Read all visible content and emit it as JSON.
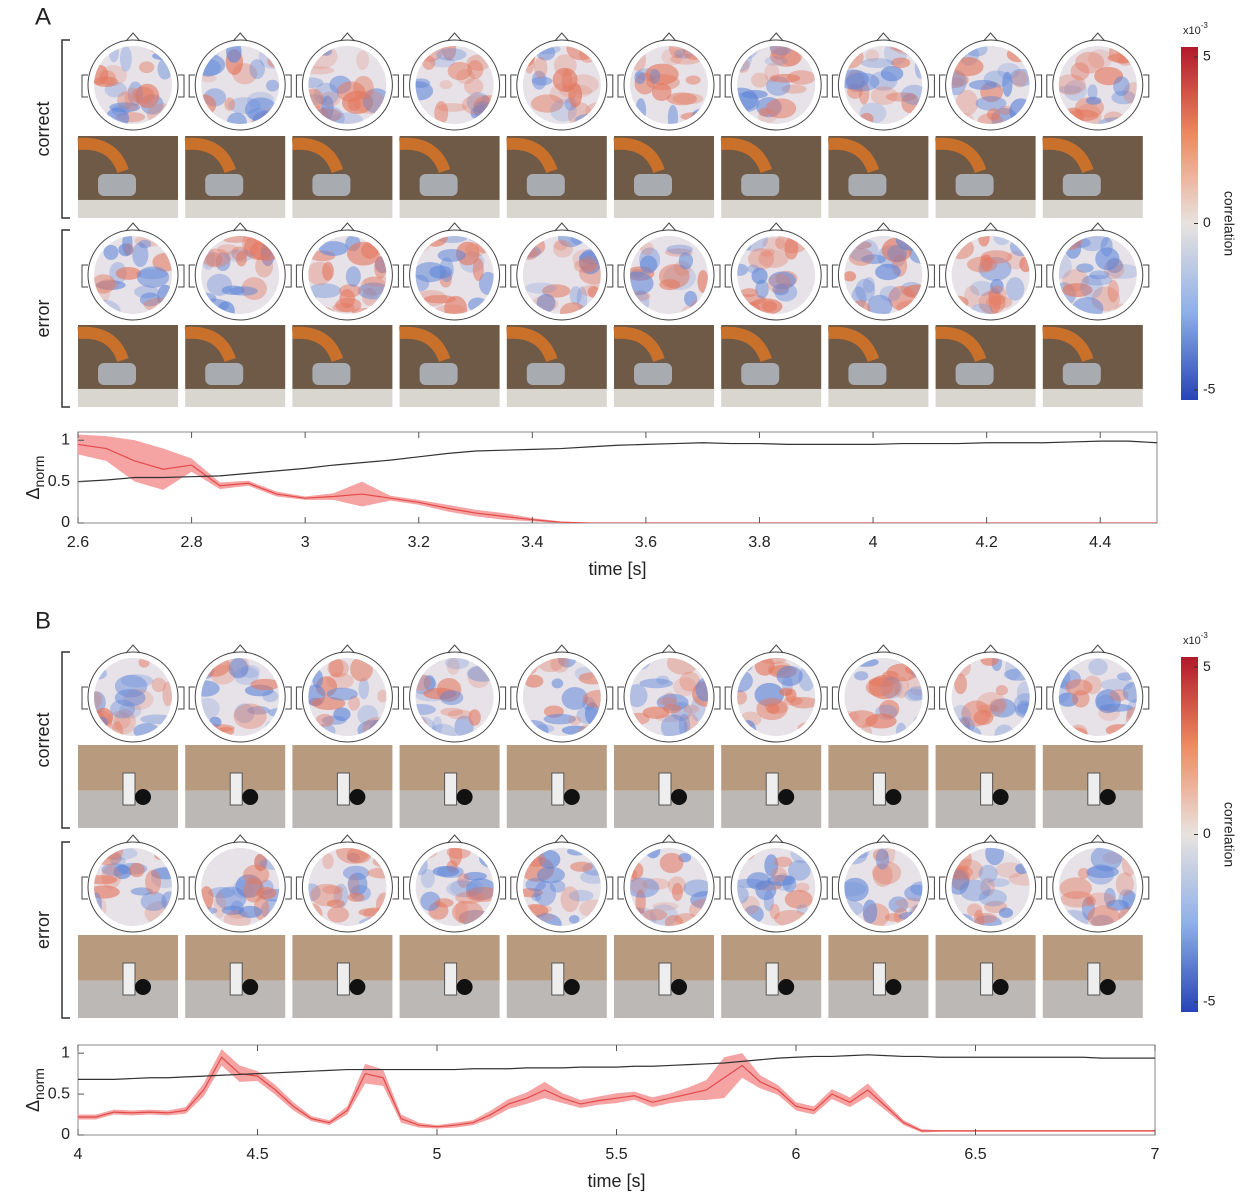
{
  "chart_data": [
    {
      "type": "line",
      "panel_label": "A",
      "row_labels": [
        "correct",
        "error"
      ],
      "colorbar": {
        "label": "correlation",
        "multiplier": "x10",
        "exponent": "-3",
        "lim": [
          -5.3,
          5.3
        ],
        "ticks": [
          5,
          0,
          -5
        ]
      },
      "ylabel": {
        "main": "Δ",
        "sub": "norm"
      },
      "xlabel": "time [s]",
      "xlim": [
        2.6,
        4.5
      ],
      "xticks": [
        2.6,
        2.8,
        3,
        3.2,
        3.4,
        3.6,
        3.8,
        4,
        4.2,
        4.4
      ],
      "ylim": [
        0,
        1.1
      ],
      "yticks": [
        0,
        0.5,
        1
      ],
      "x": [
        2.6,
        2.65,
        2.7,
        2.75,
        2.8,
        2.85,
        2.9,
        2.95,
        3.0,
        3.05,
        3.1,
        3.15,
        3.2,
        3.25,
        3.3,
        3.35,
        3.4,
        3.45,
        3.5,
        3.55,
        3.6,
        3.65,
        3.7,
        3.75,
        3.8,
        3.85,
        3.9,
        3.95,
        4.0,
        4.05,
        4.1,
        4.15,
        4.2,
        4.25,
        4.3,
        4.35,
        4.4,
        4.45,
        4.5
      ],
      "series": [
        {
          "color": "#e34a4a",
          "band_color": "#f5a3a3",
          "values": [
            0.95,
            0.9,
            0.75,
            0.65,
            0.7,
            0.45,
            0.48,
            0.35,
            0.3,
            0.32,
            0.35,
            0.3,
            0.25,
            0.18,
            0.12,
            0.08,
            0.04,
            0.01,
            0,
            0,
            0,
            0,
            0,
            0,
            0,
            0,
            0,
            0,
            0,
            0,
            0,
            0,
            0,
            0,
            0,
            0,
            0,
            0,
            0
          ],
          "errors": [
            0.12,
            0.15,
            0.25,
            0.25,
            0.08,
            0.04,
            0.03,
            0.03,
            0.02,
            0.04,
            0.15,
            0.03,
            0.03,
            0.04,
            0.04,
            0.04,
            0.02,
            0.01,
            0,
            0,
            0,
            0,
            0,
            0,
            0,
            0,
            0,
            0,
            0,
            0,
            0,
            0,
            0,
            0,
            0,
            0,
            0,
            0,
            0
          ]
        },
        {
          "color": "#333333",
          "values": [
            0.5,
            0.52,
            0.55,
            0.55,
            0.56,
            0.57,
            0.6,
            0.63,
            0.66,
            0.7,
            0.73,
            0.76,
            0.8,
            0.84,
            0.87,
            0.88,
            0.89,
            0.9,
            0.92,
            0.94,
            0.95,
            0.96,
            0.97,
            0.96,
            0.96,
            0.95,
            0.95,
            0.95,
            0.95,
            0.96,
            0.96,
            0.96,
            0.97,
            0.97,
            0.97,
            0.98,
            0.99,
            0.99,
            0.97
          ]
        }
      ]
    },
    {
      "type": "line",
      "panel_label": "B",
      "row_labels": [
        "correct",
        "error"
      ],
      "colorbar": {
        "label": "correlation",
        "multiplier": "x10",
        "exponent": "-3",
        "lim": [
          -5.3,
          5.3
        ],
        "ticks": [
          5,
          0,
          -5
        ]
      },
      "ylabel": {
        "main": "Δ",
        "sub": "norm"
      },
      "xlabel": "time [s]",
      "xlim": [
        4,
        7
      ],
      "xticks": [
        4,
        4.5,
        5,
        5.5,
        6,
        6.5,
        7
      ],
      "ylim": [
        0,
        1.1
      ],
      "yticks": [
        0,
        0.5,
        1
      ],
      "x": [
        4.0,
        4.05,
        4.1,
        4.15,
        4.2,
        4.25,
        4.3,
        4.35,
        4.4,
        4.45,
        4.5,
        4.55,
        4.6,
        4.65,
        4.7,
        4.75,
        4.8,
        4.85,
        4.9,
        4.95,
        5.0,
        5.05,
        5.1,
        5.15,
        5.2,
        5.25,
        5.3,
        5.35,
        5.4,
        5.45,
        5.5,
        5.55,
        5.6,
        5.65,
        5.7,
        5.75,
        5.8,
        5.85,
        5.9,
        5.95,
        6.0,
        6.05,
        6.1,
        6.15,
        6.2,
        6.25,
        6.3,
        6.35,
        6.4,
        6.45,
        6.5,
        6.55,
        6.6,
        6.65,
        6.7,
        6.75,
        6.8,
        6.85,
        6.9,
        6.95,
        7.0
      ],
      "series": [
        {
          "color": "#e34a4a",
          "band_color": "#f5a3a3",
          "values": [
            0.22,
            0.22,
            0.28,
            0.27,
            0.28,
            0.27,
            0.3,
            0.55,
            0.95,
            0.75,
            0.72,
            0.55,
            0.35,
            0.2,
            0.15,
            0.3,
            0.75,
            0.7,
            0.2,
            0.12,
            0.1,
            0.12,
            0.15,
            0.25,
            0.38,
            0.45,
            0.55,
            0.45,
            0.38,
            0.42,
            0.45,
            0.48,
            0.4,
            0.45,
            0.5,
            0.55,
            0.7,
            0.85,
            0.65,
            0.55,
            0.35,
            0.3,
            0.5,
            0.4,
            0.55,
            0.35,
            0.15,
            0.05,
            0.05,
            0.05,
            0.05,
            0.05,
            0.05,
            0.05,
            0.05,
            0.05,
            0.05,
            0.05,
            0.05,
            0.05,
            0.05
          ],
          "errors": [
            0.03,
            0.03,
            0.03,
            0.03,
            0.03,
            0.03,
            0.04,
            0.08,
            0.1,
            0.1,
            0.06,
            0.06,
            0.05,
            0.03,
            0.03,
            0.05,
            0.12,
            0.1,
            0.05,
            0.03,
            0.02,
            0.03,
            0.03,
            0.05,
            0.06,
            0.07,
            0.1,
            0.06,
            0.05,
            0.05,
            0.06,
            0.05,
            0.06,
            0.06,
            0.08,
            0.12,
            0.25,
            0.15,
            0.08,
            0.06,
            0.05,
            0.05,
            0.06,
            0.06,
            0.08,
            0.05,
            0.03,
            0.02,
            0.01,
            0.01,
            0.01,
            0.01,
            0.01,
            0.01,
            0.01,
            0.01,
            0.01,
            0.01,
            0.01,
            0.01,
            0.01
          ]
        },
        {
          "color": "#333333",
          "values": [
            0.68,
            0.68,
            0.68,
            0.69,
            0.7,
            0.7,
            0.71,
            0.72,
            0.73,
            0.74,
            0.75,
            0.76,
            0.77,
            0.78,
            0.79,
            0.8,
            0.8,
            0.8,
            0.8,
            0.8,
            0.8,
            0.8,
            0.81,
            0.81,
            0.81,
            0.82,
            0.82,
            0.82,
            0.83,
            0.83,
            0.83,
            0.84,
            0.84,
            0.85,
            0.86,
            0.87,
            0.88,
            0.9,
            0.92,
            0.94,
            0.95,
            0.96,
            0.96,
            0.97,
            0.98,
            0.97,
            0.96,
            0.96,
            0.95,
            0.95,
            0.95,
            0.95,
            0.95,
            0.95,
            0.95,
            0.95,
            0.95,
            0.94,
            0.94,
            0.94,
            0.94
          ]
        }
      ]
    }
  ]
}
